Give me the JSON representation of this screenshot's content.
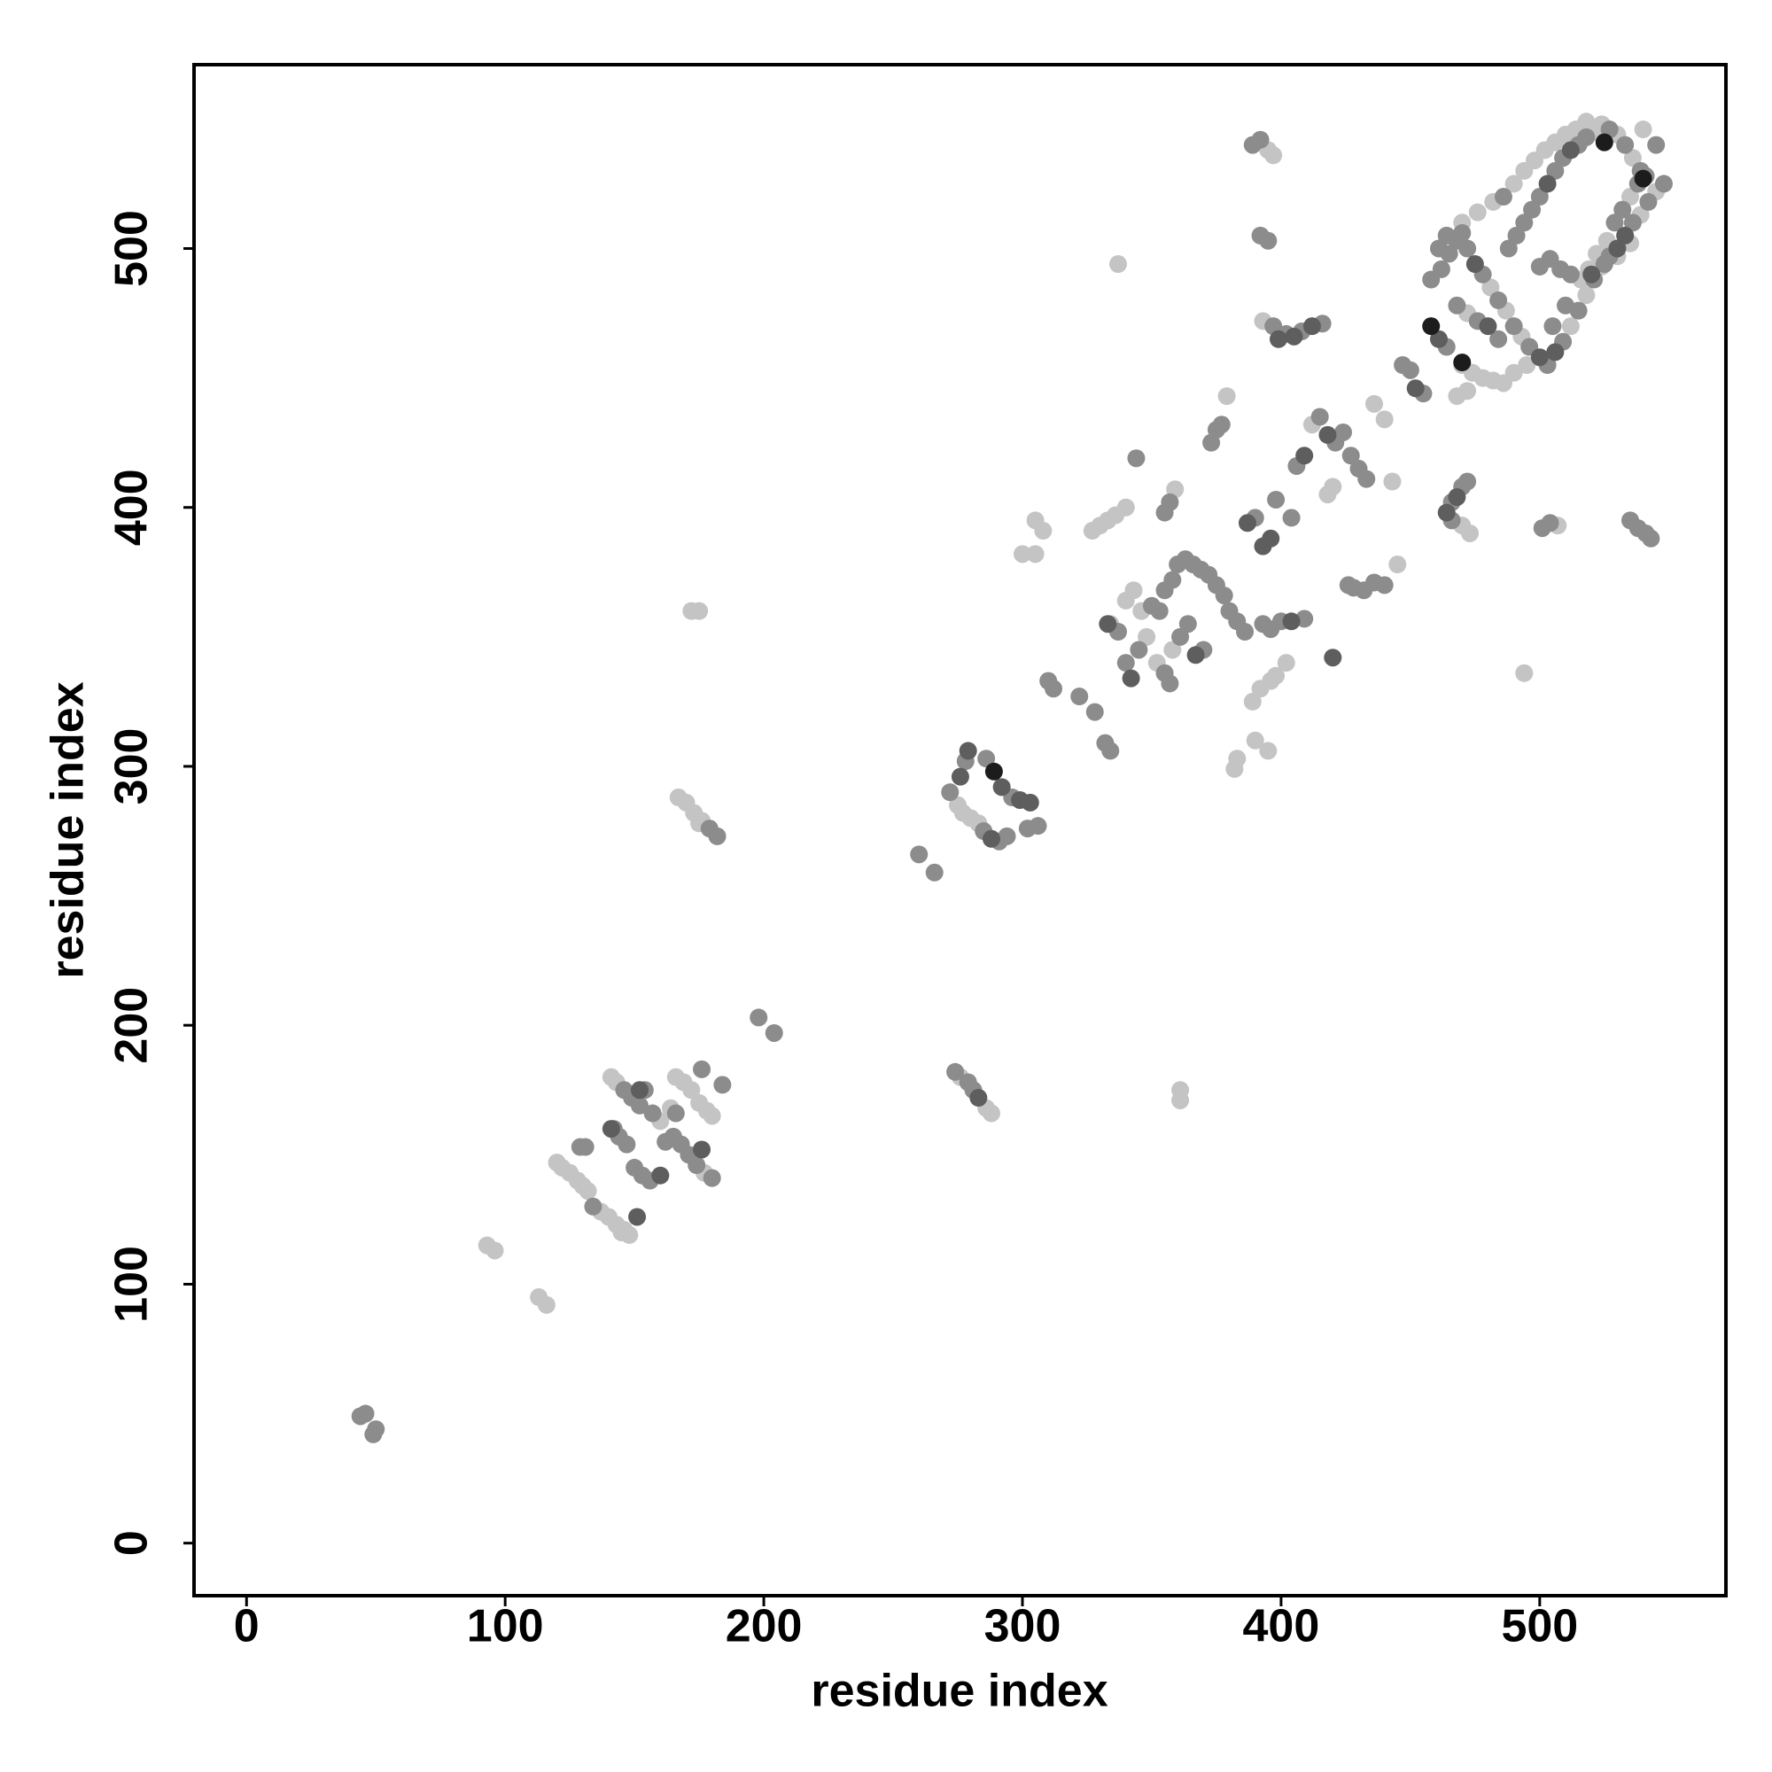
{
  "chart_data": {
    "type": "scatter",
    "xlabel": "residue index",
    "ylabel": "residue index",
    "xlim": [
      -20.3,
      572
    ],
    "ylim": [
      -20.3,
      571
    ],
    "xticks": [
      0,
      100,
      200,
      300,
      400,
      500
    ],
    "yticks": [
      0,
      100,
      200,
      300,
      400,
      500
    ],
    "grid": false,
    "series": [
      {
        "color": "#c4c4c4",
        "x": [
          93,
          96,
          113,
          116,
          120,
          122,
          125,
          128,
          130,
          132,
          137,
          140,
          143,
          146,
          148,
          145,
          141,
          143,
          160,
          166,
          169,
          172,
          175,
          178,
          180,
          177,
          164,
          172,
          175,
          167,
          170,
          173,
          176,
          175,
          276,
          286,
          288,
          275,
          277,
          280,
          283,
          361,
          361,
          337,
          300,
          305,
          308,
          305,
          327,
          330,
          333,
          336,
          340,
          334,
          348,
          352,
          358,
          359,
          379,
          340,
          343,
          346,
          382,
          383,
          390,
          395,
          389,
          392,
          396,
          398,
          402,
          395,
          397,
          393,
          412,
          436,
          440,
          443,
          418,
          420,
          445,
          481,
          487,
          493,
          512,
          518,
          524,
          539,
          545,
          521,
          524,
          530,
          536,
          540,
          472,
          470,
          474,
          478,
          482,
          486,
          490,
          495,
          519,
          522,
          526,
          535,
          490,
          494,
          498,
          502,
          506,
          510,
          514,
          518,
          470,
          476,
          482,
          516,
          530,
          535,
          468,
          472,
          470,
          473,
          507,
          494
        ],
        "values": [
          115,
          113,
          95,
          92,
          147,
          145,
          143,
          140,
          138,
          136,
          128,
          126,
          123,
          121,
          119,
          120,
          180,
          178,
          163,
          180,
          178,
          175,
          170,
          167,
          165,
          143,
          168,
          360,
          360,
          288,
          286,
          282,
          279,
          278,
          180,
          168,
          166,
          285,
          282,
          280,
          278,
          175,
          171,
          494,
          382,
          382,
          391,
          395,
          391,
          393,
          395,
          397,
          400,
          355,
          350,
          340,
          345,
          407,
          443,
          364,
          368,
          360,
          299,
          303,
          310,
          306,
          325,
          330,
          333,
          335,
          340,
          538,
          536,
          472,
          432,
          440,
          434,
          410,
          405,
          408,
          378,
          485,
          476,
          466,
          470,
          482,
          493,
          513,
          522,
          545,
          548,
          544,
          535,
          546,
          475,
          455,
          452,
          450,
          449,
          448,
          452,
          455,
          492,
          498,
          503,
          520,
          525,
          530,
          534,
          538,
          541,
          544,
          546,
          549,
          510,
          514,
          518,
          488,
          497,
          502,
          443,
          445,
          393,
          390,
          393,
          336
        ]
      },
      {
        "color": "#8c8c8c",
        "x": [
          44,
          46,
          50,
          49,
          131,
          129,
          146,
          149,
          154,
          157,
          165,
          168,
          171,
          174,
          180,
          176,
          184,
          198,
          204,
          260,
          266,
          272,
          278,
          285,
          291,
          294,
          302,
          306,
          286,
          296,
          274,
          279,
          281,
          179,
          182,
          310,
          312,
          322,
          328,
          332,
          334,
          337,
          340,
          344,
          345,
          355,
          358,
          360,
          363,
          366,
          369,
          372,
          375,
          378,
          380,
          357,
          355,
          370,
          355,
          357,
          373,
          375,
          377,
          398,
          404,
          393,
          389,
          392,
          392,
          395,
          397,
          402,
          408,
          416,
          406,
          415,
          421,
          424,
          427,
          426,
          428,
          432,
          436,
          440,
          447,
          450,
          455,
          464,
          458,
          462,
          465,
          468,
          470,
          472,
          478,
          484,
          488,
          491,
          494,
          497,
          509,
          515,
          518,
          527,
          533,
          539,
          545,
          468,
          476,
          484,
          490,
          496,
          503,
          509,
          515,
          521,
          527,
          536,
          542,
          548,
          506,
          500,
          486,
          500,
          504,
          508,
          512,
          525,
          466,
          470,
          472,
          466,
          501,
          504,
          535,
          538,
          541,
          543,
          361,
          364,
          350,
          353,
          383,
          386,
          390,
          396,
          400,
          409,
          430,
          433,
          461,
          464,
          529,
          532,
          538,
          541,
          510,
          505,
          147,
          150,
          153,
          156,
          166,
          162,
          142,
          144,
          134,
          152
        ],
        "values": [
          49,
          50,
          44,
          42,
          153,
          153,
          175,
          172,
          175,
          166,
          157,
          154,
          150,
          146,
          141,
          183,
          177,
          203,
          197,
          266,
          259,
          290,
          302,
          275,
          271,
          273,
          276,
          277,
          303,
          288,
          182,
          178,
          175,
          276,
          273,
          333,
          330,
          327,
          321,
          309,
          306,
          352,
          340,
          419,
          345,
          368,
          372,
          378,
          380,
          378,
          376,
          374,
          370,
          366,
          360,
          332,
          336,
          345,
          398,
          402,
          425,
          430,
          432,
          403,
          396,
          355,
          540,
          542,
          505,
          503,
          470,
          467,
          468,
          471,
          416,
          435,
          425,
          429,
          420,
          370,
          369,
          368,
          371,
          370,
          455,
          453,
          444,
          462,
          488,
          492,
          498,
          503,
          506,
          500,
          490,
          480,
          500,
          505,
          510,
          515,
          535,
          540,
          543,
          546,
          540,
          530,
          540,
          478,
          472,
          465,
          470,
          462,
          455,
          464,
          476,
          488,
          497,
          510,
          518,
          525,
          530,
          520,
          520,
          493,
          496,
          492,
          490,
          494,
          402,
          408,
          410,
          395,
          392,
          394,
          395,
          392,
          390,
          388,
          350,
          355,
          362,
          360,
          356,
          352,
          396,
          353,
          356,
          357,
          415,
          411,
          500,
          505,
          510,
          515,
          525,
          528,
          478,
          470,
          154,
          145,
          142,
          140,
          166,
          155,
          160,
          157,
          130,
          169
        ]
      },
      {
        "color": "#5e5e5e",
        "x": [
          141,
          152,
          160,
          176,
          151,
          276,
          279,
          283,
          288,
          299,
          303,
          292,
          333,
          342,
          367,
          387,
          393,
          396,
          404,
          399,
          405,
          412,
          418,
          409,
          464,
          468,
          452,
          461,
          475,
          500,
          506,
          530,
          533,
          512,
          520,
          420,
          480,
          503
        ],
        "values": [
          160,
          175,
          142,
          152,
          126,
          296,
          306,
          172,
          272,
          287,
          286,
          292,
          355,
          334,
          343,
          394,
          385,
          388,
          356,
          465,
          466,
          470,
          428,
          420,
          398,
          404,
          446,
          465,
          494,
          458,
          460,
          500,
          505,
          538,
          490,
          342,
          470,
          525
        ]
      },
      {
        "color": "#1c1c1c",
        "x": [
          289,
          458,
          470,
          525,
          540
        ],
        "values": [
          298,
          470,
          456,
          541,
          527
        ]
      }
    ]
  }
}
